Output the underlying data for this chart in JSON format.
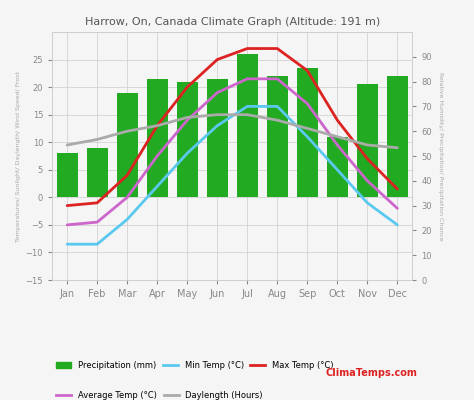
{
  "title": "Harrow, On, Canada Climate Graph (Altitude: 191 m)",
  "months": [
    "Jan",
    "Feb",
    "Mar",
    "Apr",
    "May",
    "Jun",
    "Jul",
    "Aug",
    "Sep",
    "Oct",
    "Nov",
    "Dec"
  ],
  "precipitation_mm": [
    8,
    9,
    19,
    21.5,
    21,
    21.5,
    26,
    22,
    23.5,
    11,
    20.5,
    22
  ],
  "min_temp": [
    -8.5,
    -8.5,
    -4,
    2,
    8,
    13,
    16.5,
    16.5,
    11,
    5,
    -1,
    -5
  ],
  "max_temp": [
    -1.5,
    -1,
    4,
    13,
    20,
    25,
    27,
    27,
    23,
    14,
    7,
    1.5
  ],
  "avg_temp": [
    -5,
    -4.5,
    0,
    7.5,
    14,
    19,
    21.5,
    21.5,
    17,
    9.5,
    3,
    -2
  ],
  "daylength": [
    9.5,
    10.5,
    12,
    13,
    14.5,
    15,
    15,
    14,
    12.5,
    11,
    9.5,
    9
  ],
  "bar_color": "#22aa22",
  "min_temp_color": "#5bc8f0",
  "max_temp_color": "#dd2222",
  "avg_temp_color": "#cc66cc",
  "daylength_color": "#aaaaaa",
  "ylim_left": [
    -15,
    30
  ],
  "ylim_right": [
    0,
    100
  ],
  "bg_color": "#f5f5f5",
  "grid_color": "#cccccc",
  "title_color": "#555555",
  "legend_items": [
    {
      "label": "Precipitation (mm)",
      "color": "#22aa22",
      "type": "bar"
    },
    {
      "label": "Min Temp (°C)",
      "color": "#5bc8f0",
      "type": "line"
    },
    {
      "label": "Max Temp (°C)",
      "color": "#dd2222",
      "type": "line"
    },
    {
      "label": "Average Temp (°C)",
      "color": "#cc66cc",
      "type": "line"
    },
    {
      "label": "Daylength (Hours)",
      "color": "#aaaaaa",
      "type": "line"
    }
  ]
}
